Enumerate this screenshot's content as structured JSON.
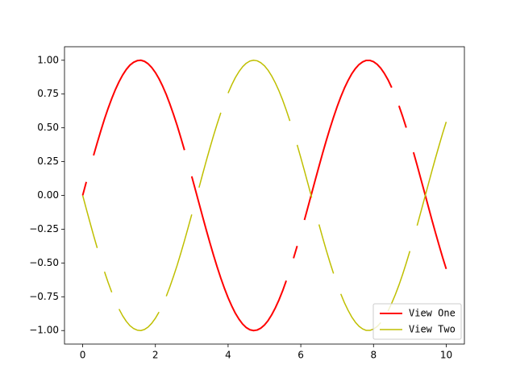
{
  "chart_data": {
    "type": "line",
    "x": [
      0,
      0.1,
      0.2,
      0.3,
      0.4,
      0.5,
      0.6,
      0.7,
      0.8,
      0.9,
      1,
      1.1,
      1.2,
      1.3,
      1.4,
      1.5,
      1.6,
      1.7,
      1.8,
      1.9,
      2,
      2.1,
      2.2,
      2.3,
      2.4,
      2.5,
      2.6,
      2.7,
      2.8,
      2.9,
      3,
      3.1,
      3.2,
      3.3,
      3.4,
      3.5,
      3.6,
      3.7,
      3.8,
      3.9,
      4,
      4.1,
      4.2,
      4.3,
      4.4,
      4.5,
      4.6,
      4.7,
      4.8,
      4.9,
      5,
      5.1,
      5.2,
      5.3,
      5.4,
      5.5,
      5.6,
      5.7,
      5.8,
      5.9,
      6,
      6.1,
      6.2,
      6.3,
      6.4,
      6.5,
      6.6,
      6.7,
      6.8,
      6.9,
      7,
      7.1,
      7.2,
      7.3,
      7.4,
      7.5,
      7.6,
      7.7,
      7.8,
      7.9,
      8,
      8.1,
      8.2,
      8.3,
      8.4,
      8.5,
      8.6,
      8.7,
      8.8,
      8.9,
      9,
      9.1,
      9.2,
      9.3,
      9.4,
      9.5,
      9.6,
      9.7,
      9.8,
      9.9,
      10
    ],
    "series": [
      {
        "name": "View One",
        "color": "#ff0000",
        "values": [
          0,
          0.1,
          null,
          0.296,
          0.389,
          0.479,
          0.565,
          0.644,
          0.717,
          0.783,
          0.841,
          0.891,
          0.932,
          0.964,
          0.985,
          0.997,
          1.0,
          0.992,
          0.974,
          0.946,
          0.909,
          0.863,
          0.808,
          0.746,
          0.675,
          0.598,
          0.516,
          0.427,
          0.335,
          null,
          0.141,
          0.042,
          -0.058,
          -0.158,
          -0.256,
          -0.351,
          -0.443,
          -0.53,
          -0.612,
          -0.688,
          -0.757,
          -0.818,
          -0.872,
          -0.916,
          -0.952,
          -0.978,
          -0.994,
          -1.0,
          -0.996,
          -0.982,
          -0.959,
          -0.926,
          -0.883,
          -0.832,
          -0.773,
          -0.706,
          -0.631,
          null,
          -0.465,
          -0.374,
          null,
          -0.182,
          -0.083,
          0.017,
          0.117,
          0.215,
          0.312,
          0.405,
          0.494,
          0.578,
          0.657,
          0.729,
          0.794,
          0.85,
          0.899,
          0.938,
          0.968,
          0.988,
          0.999,
          0.999,
          0.989,
          0.97,
          0.941,
          0.902,
          0.855,
          0.798,
          null,
          0.663,
          0.585,
          0.501,
          null,
          0.319,
          0.223,
          0.124,
          0.025,
          -0.075,
          -0.175,
          -0.272,
          -0.366,
          -0.458,
          -0.544
        ]
      },
      {
        "name": "View Two",
        "color": "#bfbf00",
        "values": [
          0,
          -0.1,
          -0.199,
          -0.296,
          -0.389,
          null,
          -0.565,
          -0.644,
          -0.717,
          null,
          -0.841,
          -0.891,
          -0.932,
          -0.964,
          -0.985,
          -0.997,
          -1.0,
          -0.992,
          -0.974,
          -0.946,
          -0.909,
          -0.863,
          null,
          -0.746,
          -0.675,
          -0.598,
          -0.516,
          -0.427,
          -0.335,
          -0.239,
          -0.141,
          null,
          0.058,
          0.158,
          0.256,
          0.351,
          0.443,
          0.53,
          0.612,
          null,
          0.757,
          0.818,
          0.872,
          0.916,
          0.952,
          0.978,
          0.994,
          1.0,
          0.996,
          0.982,
          0.959,
          0.926,
          0.883,
          0.832,
          0.773,
          0.706,
          0.631,
          0.551,
          null,
          0.374,
          0.279,
          0.182,
          0.083,
          -0.017,
          null,
          -0.215,
          -0.312,
          -0.405,
          -0.494,
          -0.578,
          null,
          -0.729,
          -0.794,
          -0.85,
          -0.899,
          -0.938,
          -0.968,
          -0.988,
          -0.999,
          -0.999,
          -0.989,
          -0.97,
          -0.941,
          null,
          -0.855,
          -0.798,
          -0.734,
          -0.663,
          -0.585,
          -0.501,
          -0.412,
          null,
          -0.223,
          -0.124,
          -0.025,
          0.075,
          0.175,
          0.272,
          0.366,
          0.458,
          0.544
        ]
      }
    ],
    "xlim": [
      -0.5,
      10.5
    ],
    "ylim": [
      -1.1,
      1.1
    ],
    "xticks": [
      0,
      2,
      4,
      6,
      8,
      10
    ],
    "yticks": [
      {
        "value": -1,
        "label": "−1.00"
      },
      {
        "value": -0.75,
        "label": "−0.75"
      },
      {
        "value": -0.5,
        "label": "−0.50"
      },
      {
        "value": -0.25,
        "label": "−0.25"
      },
      {
        "value": 0,
        "label": "0.00"
      },
      {
        "value": 0.25,
        "label": "0.25"
      },
      {
        "value": 0.5,
        "label": "0.50"
      },
      {
        "value": 0.75,
        "label": "0.75"
      },
      {
        "value": 1,
        "label": "1.00"
      }
    ],
    "legend": "lower right"
  }
}
